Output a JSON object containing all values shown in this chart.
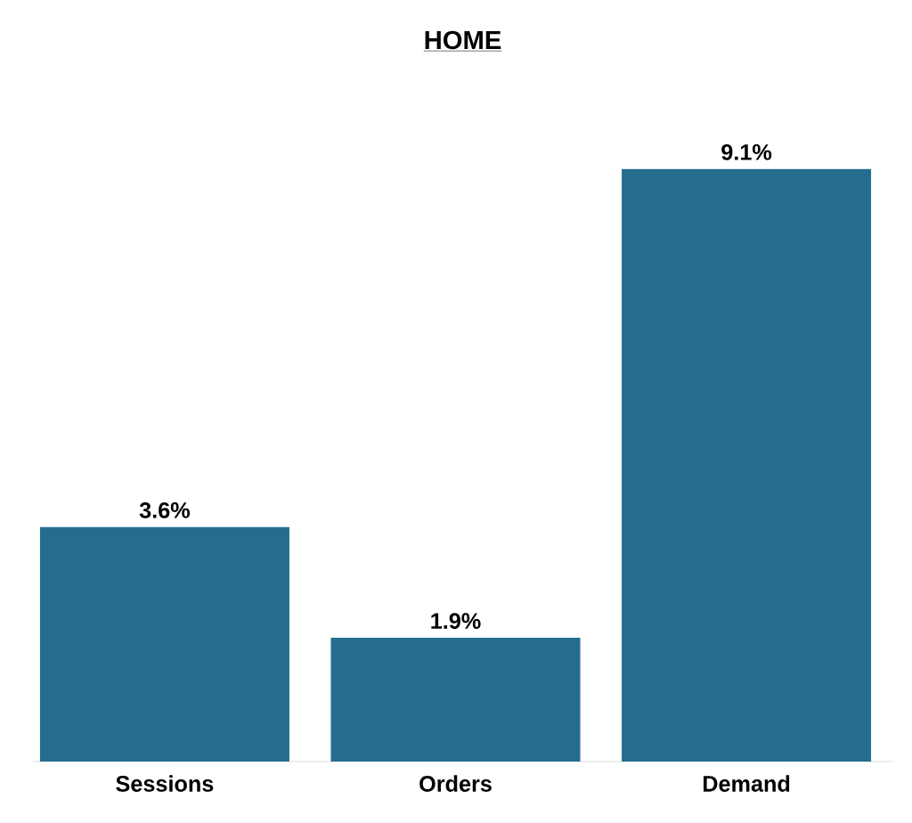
{
  "chart_data": {
    "type": "bar",
    "title": "HOME",
    "categories": [
      "Sessions",
      "Orders",
      "Demand"
    ],
    "values": [
      3.6,
      1.9,
      9.1
    ],
    "value_labels": [
      "3.6%",
      "1.9%",
      "9.1%"
    ],
    "color": "#246d8f"
  }
}
